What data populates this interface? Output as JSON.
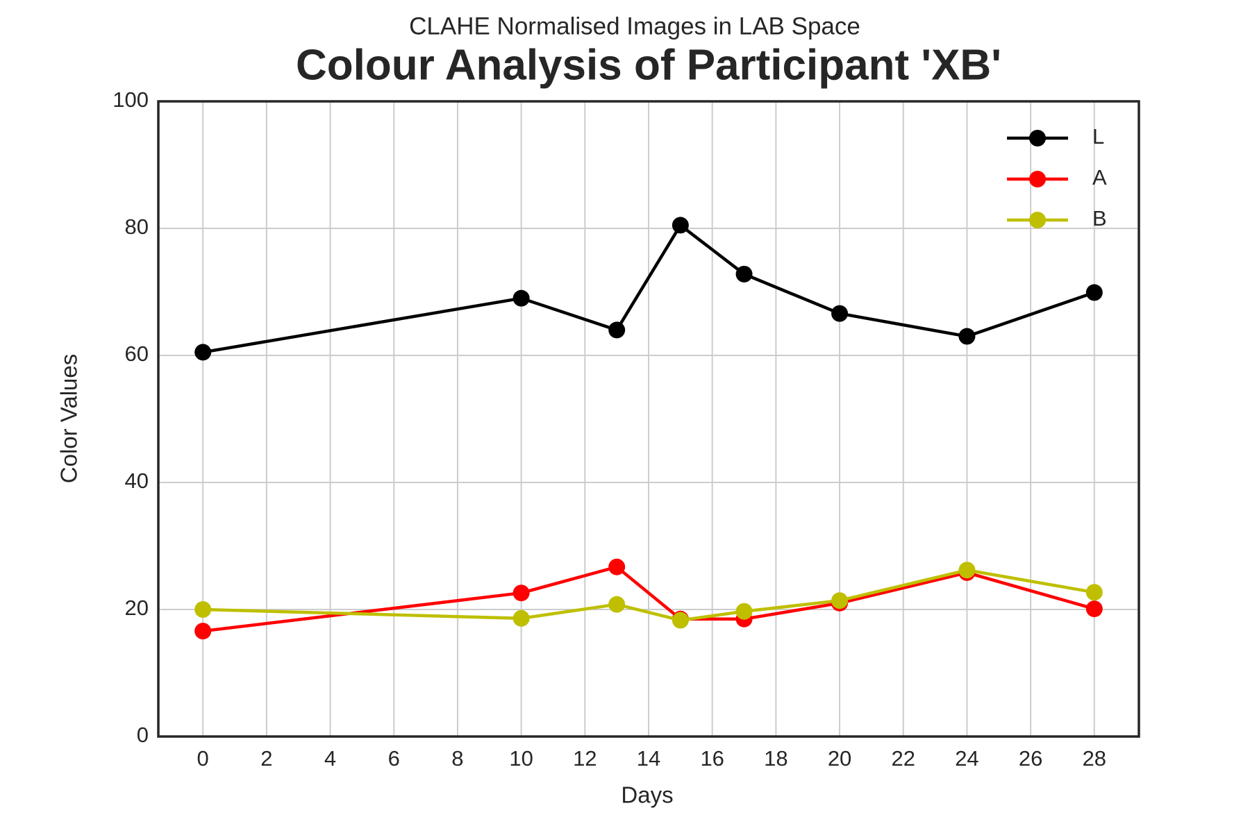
{
  "chart_data": {
    "type": "line",
    "subtitle": "CLAHE Normalised Images in LAB Space",
    "title": "Colour Analysis of Participant 'XB'",
    "x_label": "Days",
    "y_label": "Color Values",
    "x": [
      0,
      10,
      13,
      15,
      17,
      20,
      24,
      28
    ],
    "series": [
      {
        "name": "L",
        "color": "#000000",
        "values": [
          60.5,
          69,
          64,
          80.5,
          72.8,
          66.6,
          63,
          69.9
        ]
      },
      {
        "name": "A",
        "color": "#ff0000",
        "values": [
          16.6,
          22.6,
          26.7,
          18.5,
          18.5,
          21,
          25.8,
          20.1
        ]
      },
      {
        "name": "B",
        "color": "#bfbf00",
        "values": [
          20,
          18.6,
          20.8,
          18.3,
          19.7,
          21.4,
          26.2,
          22.7
        ]
      }
    ],
    "xlim": [
      -1.4,
      29.4
    ],
    "xticks": [
      0,
      2,
      4,
      6,
      8,
      10,
      12,
      14,
      16,
      18,
      20,
      22,
      24,
      26,
      28
    ],
    "ylim": [
      0,
      100
    ],
    "yticks": [
      0,
      20,
      40,
      60,
      80,
      100
    ],
    "grid": true,
    "legend": "upper right"
  }
}
